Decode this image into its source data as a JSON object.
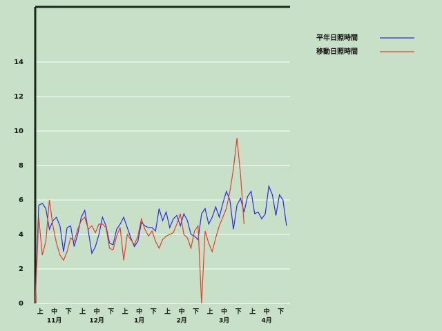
{
  "chart_data": {
    "type": "line",
    "categories": [
      null,
      "上",
      null,
      null,
      null,
      "中",
      null,
      null,
      null,
      "下",
      null,
      null,
      null,
      "上",
      null,
      null,
      null,
      "中",
      null,
      null,
      null,
      "下",
      null,
      null,
      null,
      "上",
      null,
      null,
      null,
      "中",
      null,
      null,
      null,
      "下",
      null,
      null,
      null,
      "上",
      null,
      null,
      null,
      "中",
      null,
      null,
      null,
      "下",
      null,
      null,
      null,
      "上",
      null,
      null,
      null,
      "中",
      null,
      null,
      null,
      "下",
      null,
      null,
      null,
      "上",
      null,
      null,
      null,
      "中",
      null,
      null,
      null,
      "下",
      null,
      null
    ],
    "month_labels": [
      "11月",
      "12月",
      "1月",
      "2月",
      "3月",
      "4月"
    ],
    "series": [
      {
        "name": "平年日照時間",
        "color": "#2a2ae6",
        "values": [
          0,
          5.7,
          5.8,
          5.5,
          4.3,
          4.8,
          5.0,
          4.5,
          3.0,
          4.4,
          4.5,
          3.3,
          4.0,
          5.0,
          5.4,
          4.2,
          2.9,
          3.3,
          4.0,
          5.0,
          4.5,
          3.5,
          3.4,
          4.3,
          4.6,
          5.0,
          4.4,
          3.8,
          3.3,
          3.6,
          4.7,
          4.5,
          4.4,
          4.4,
          4.2,
          5.5,
          4.8,
          5.3,
          4.4,
          4.9,
          5.1,
          4.5,
          5.2,
          4.8,
          4.0,
          3.9,
          3.7,
          5.2,
          5.5,
          4.6,
          5.0,
          5.6,
          5.0,
          5.8,
          6.5,
          6.0,
          4.3,
          5.7,
          6.1,
          5.3,
          6.2,
          6.5,
          5.2,
          5.3,
          4.9,
          5.2,
          6.8,
          6.3,
          5.1,
          6.3,
          6.0,
          4.5
        ]
      },
      {
        "name": "移動日照時間",
        "color": "#e0402a",
        "values": [
          0,
          5.0,
          2.8,
          3.6,
          6.0,
          4.5,
          3.5,
          2.8,
          2.5,
          3.0,
          3.8,
          3.6,
          4.3,
          4.8,
          5.0,
          4.3,
          4.5,
          4.1,
          4.6,
          4.6,
          4.4,
          3.2,
          3.1,
          3.9,
          4.4,
          2.5,
          4.0,
          3.7,
          3.4,
          3.9,
          4.9,
          4.3,
          3.9,
          4.2,
          3.6,
          3.2,
          3.7,
          3.9,
          4.0,
          4.1,
          4.6,
          5.2,
          4.0,
          3.8,
          3.2,
          4.2,
          4.5,
          0,
          4.2,
          3.5,
          3.0,
          3.8,
          4.5,
          5.0,
          5.5,
          6.5,
          7.8,
          9.6,
          7.5,
          4.6,
          null,
          null,
          null,
          null,
          null,
          null,
          null,
          null,
          null,
          null,
          null,
          null
        ]
      }
    ],
    "ylim": [
      0,
      17.2
    ],
    "yticks": [
      0,
      2,
      4,
      6,
      8,
      10,
      12,
      14
    ],
    "grid": true,
    "legend": "top-right"
  }
}
